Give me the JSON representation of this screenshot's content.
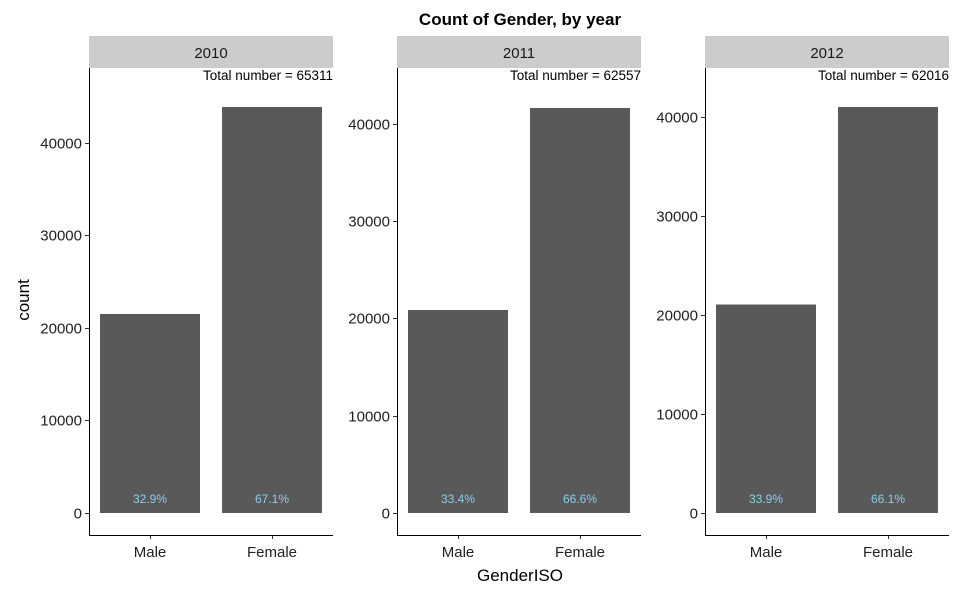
{
  "chart_data": {
    "type": "bar",
    "title": "Count of Gender, by year",
    "xlabel": "GenderISO",
    "ylabel": "count",
    "grid": false,
    "categories": [
      "Male",
      "Female"
    ],
    "panels": [
      {
        "strip": "2010",
        "total_label": "Total number = 65311",
        "values": [
          21488,
          43823
        ],
        "pct_labels": [
          "32.9%",
          "67.1%"
        ],
        "ylim": [
          0,
          46000
        ],
        "yticks": [
          0,
          10000,
          20000,
          30000,
          40000
        ]
      },
      {
        "strip": "2011",
        "total_label": "Total number = 62557",
        "values": [
          20894,
          41663
        ],
        "pct_labels": [
          "33.4%",
          "66.6%"
        ],
        "ylim": [
          0,
          43800
        ],
        "yticks": [
          0,
          10000,
          20000,
          30000,
          40000
        ]
      },
      {
        "strip": "2012",
        "total_label": "Total number = 62016",
        "values": [
          21023,
          40993
        ],
        "pct_labels": [
          "33.9%",
          "66.1%"
        ],
        "ylim": [
          0,
          43000
        ],
        "yticks": [
          0,
          10000,
          20000,
          30000,
          40000
        ]
      }
    ]
  }
}
